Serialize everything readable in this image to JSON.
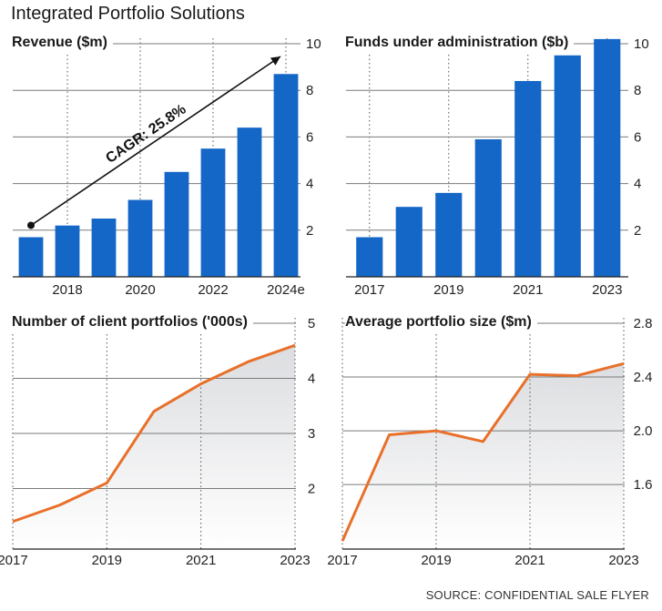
{
  "title": "Integrated Portfolio Solutions",
  "source": "SOURCE: CONFIDENTIAL SALE FLYER",
  "colors": {
    "bar": "#1467c7",
    "line": "#e8702a",
    "grid": "#7a7a7a",
    "area": "#e4e4e6"
  },
  "chart_data": [
    {
      "type": "bar",
      "title": "Revenue ($m)",
      "categories": [
        "2017",
        "2018",
        "2019",
        "2020",
        "2021",
        "2022",
        "2023",
        "2024e"
      ],
      "x_tick_labels": [
        "2018",
        "2020",
        "2022",
        "2024e"
      ],
      "values": [
        1.7,
        2.2,
        2.5,
        3.3,
        4.5,
        5.5,
        6.4,
        8.7
      ],
      "ylim": [
        0,
        10
      ],
      "y_ticks": [
        2,
        4,
        6,
        8,
        10
      ],
      "annotation": "CAGR: 25.8%",
      "grid": true
    },
    {
      "type": "bar",
      "title": "Funds under administration ($b)",
      "categories": [
        "2017",
        "2018",
        "2019",
        "2020",
        "2021",
        "2022",
        "2023"
      ],
      "x_tick_labels": [
        "2017",
        "2019",
        "2021",
        "2023"
      ],
      "values": [
        1.7,
        3.0,
        3.6,
        5.9,
        8.4,
        9.5,
        10.2
      ],
      "ylim": [
        0,
        10
      ],
      "y_ticks": [
        2,
        4,
        6,
        8,
        10
      ],
      "grid": true
    },
    {
      "type": "area",
      "title": "Number of client portfolios ('000s)",
      "x": [
        "2017",
        "2018",
        "2019",
        "2020",
        "2021",
        "2022",
        "2023"
      ],
      "x_tick_labels": [
        "2017",
        "2019",
        "2021",
        "2023"
      ],
      "values": [
        1.4,
        1.7,
        2.1,
        3.4,
        3.9,
        4.3,
        4.6
      ],
      "ylim": [
        0.9,
        5
      ],
      "y_ticks": [
        2,
        3,
        4,
        5
      ],
      "grid": true
    },
    {
      "type": "area",
      "title": "Average portfolio size ($m)",
      "x": [
        "2017",
        "2018",
        "2019",
        "2020",
        "2021",
        "2022",
        "2023"
      ],
      "x_tick_labels": [
        "2017",
        "2019",
        "2021",
        "2023"
      ],
      "values": [
        1.18,
        1.97,
        2.0,
        1.92,
        2.42,
        2.41,
        2.5
      ],
      "ylim": [
        1.12,
        2.8
      ],
      "y_ticks": [
        1.6,
        2.0,
        2.4,
        2.8
      ],
      "grid": true
    }
  ]
}
